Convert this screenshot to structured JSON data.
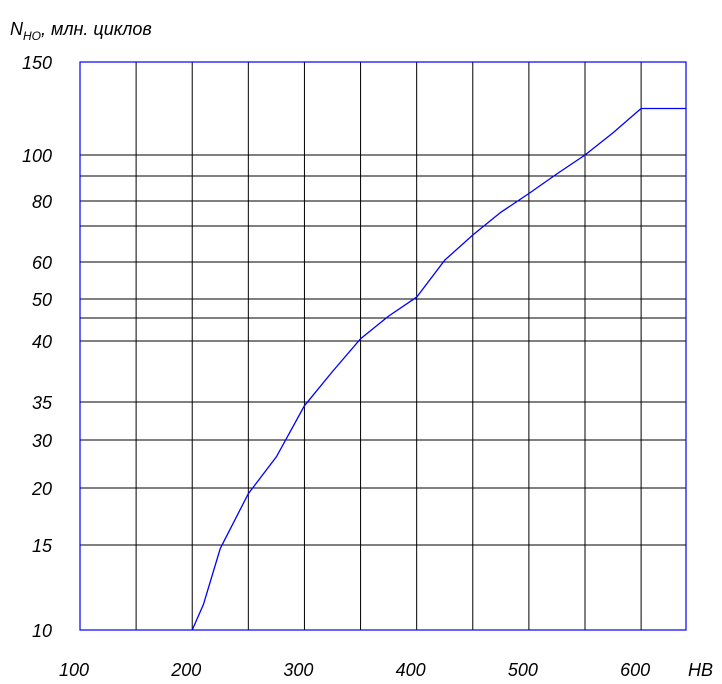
{
  "chart_data": {
    "type": "line",
    "title": "",
    "ylabel": {
      "main": "N",
      "sub": "HO",
      "rest": ", млн. циклов"
    },
    "xlabel": "HB",
    "x_ticks": [
      {
        "value": 100,
        "label": "100"
      },
      {
        "value": 200,
        "label": "200"
      },
      {
        "value": 300,
        "label": "300"
      },
      {
        "value": 400,
        "label": "400"
      },
      {
        "value": 500,
        "label": "500"
      },
      {
        "value": 600,
        "label": "600"
      }
    ],
    "x_gridlines": [
      150,
      200,
      250,
      300,
      350,
      400,
      450,
      500,
      550,
      600
    ],
    "xlim": [
      100,
      640
    ],
    "y_ticks": [
      {
        "value": 10,
        "label": "10"
      },
      {
        "value": 15,
        "label": "15"
      },
      {
        "value": 20,
        "label": "20"
      },
      {
        "value": 30,
        "label": "30"
      },
      {
        "value": 35,
        "label": "35"
      },
      {
        "value": 40,
        "label": "40"
      },
      {
        "value": 50,
        "label": "50"
      },
      {
        "value": 60,
        "label": "60"
      },
      {
        "value": 80,
        "label": "80"
      },
      {
        "value": 100,
        "label": "100"
      },
      {
        "value": 150,
        "label": "150"
      }
    ],
    "y_extra_gridlines": [
      45,
      70,
      90
    ],
    "ylim": [
      10,
      150
    ],
    "grid": true,
    "series": [
      {
        "x": [
          200,
          210,
          225,
          250,
          275,
          300,
          325,
          350,
          375,
          400,
          425,
          450,
          475,
          500,
          525,
          550,
          575,
          600,
          640
        ],
        "y": [
          10,
          11.5,
          14.8,
          19.5,
          26.5,
          34.5,
          37.5,
          40.5,
          45.5,
          50.5,
          60.5,
          67.5,
          75.5,
          83,
          91,
          100,
          112,
          125,
          125
        ]
      }
    ],
    "colors": {
      "frame": "#0000ff",
      "grid": "#000000",
      "line": "#0000ff",
      "text": "#000000"
    }
  }
}
